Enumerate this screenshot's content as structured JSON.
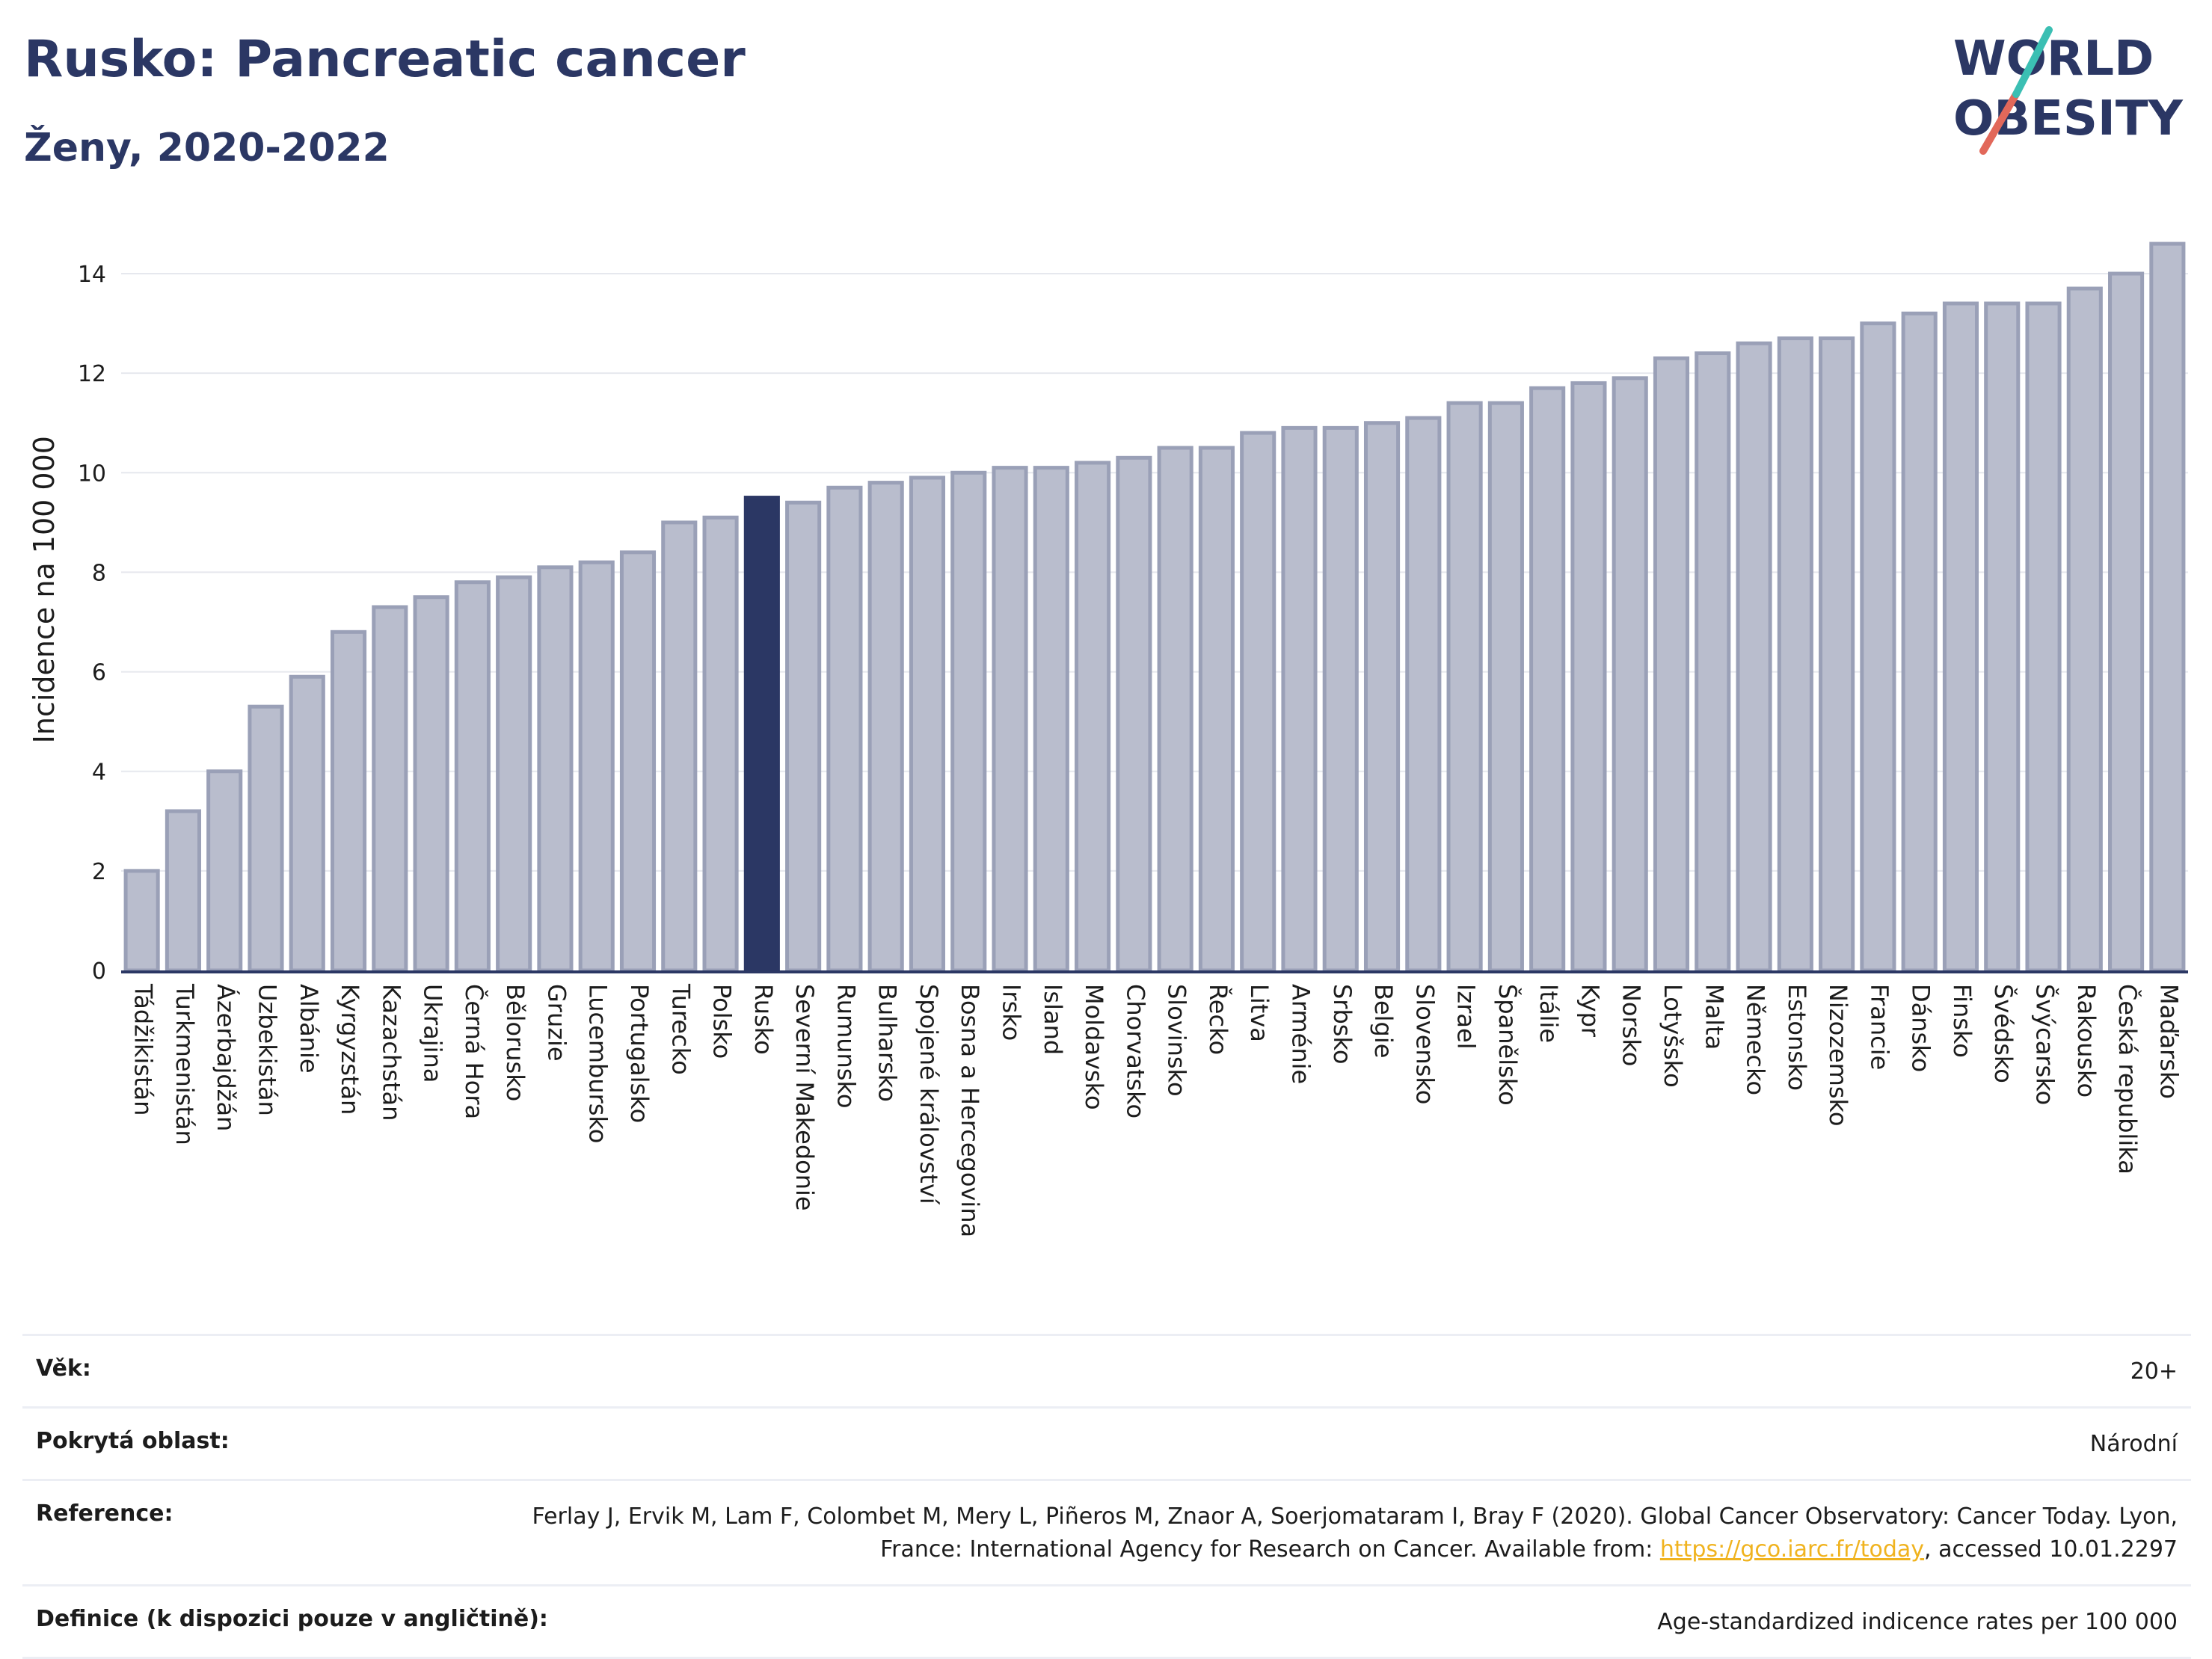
{
  "header": {
    "title": "Rusko: Pancreatic cancer",
    "subtitle": "Ženy, 2020-2022"
  },
  "logo": {
    "line1": "WORLD",
    "line2": "OBESITY"
  },
  "colors": {
    "bar": "#b9bdcd",
    "bar_stroke": "#9aa0b7",
    "highlight": "#2b3764",
    "grid": "#e6e8ee",
    "text": "#2b3764"
  },
  "chart_data": {
    "type": "bar",
    "ylabel": "Incidence na 100 000",
    "ylim": [
      0,
      15
    ],
    "yticks": [
      0,
      2,
      4,
      6,
      8,
      10,
      12,
      14
    ],
    "grid": true,
    "highlight": "Rusko",
    "categories": [
      "Tádžikistán",
      "Turkmenistán",
      "Ázerbajdžán",
      "Uzbekistán",
      "Albánie",
      "Kyrgyzstán",
      "Kazachstán",
      "Ukrajina",
      "Černá Hora",
      "Bělorusko",
      "Gruzie",
      "Lucembursko",
      "Portugalsko",
      "Turecko",
      "Polsko",
      "Rusko",
      "Severní Makedonie",
      "Rumunsko",
      "Bulharsko",
      "Spojené království",
      "Bosna a Hercegovina",
      "Irsko",
      "Island",
      "Moldavsko",
      "Chorvatsko",
      "Slovinsko",
      "Řecko",
      "Litva",
      "Arménie",
      "Srbsko",
      "Belgie",
      "Slovensko",
      "Izrael",
      "Španělsko",
      "Itálie",
      "Kypr",
      "Norsko",
      "Lotyšsko",
      "Malta",
      "Německo",
      "Estonsko",
      "Nizozemsko",
      "Francie",
      "Dánsko",
      "Finsko",
      "Švédsko",
      "Švýcarsko",
      "Rakousko",
      "Česká republika",
      "Maďarsko"
    ],
    "values": [
      2.0,
      3.2,
      4.0,
      5.3,
      5.9,
      6.8,
      7.3,
      7.5,
      7.8,
      7.9,
      8.1,
      8.2,
      8.4,
      9.0,
      9.1,
      9.5,
      9.4,
      9.7,
      9.8,
      9.9,
      10.0,
      10.1,
      10.1,
      10.2,
      10.3,
      10.5,
      10.5,
      10.8,
      10.9,
      10.9,
      11.0,
      11.1,
      11.4,
      11.4,
      11.7,
      11.8,
      11.9,
      12.3,
      12.4,
      12.6,
      12.7,
      12.7,
      13.0,
      13.2,
      13.4,
      13.4,
      13.4,
      13.7,
      14.0,
      14.6
    ]
  },
  "meta": {
    "age_label": "Věk:",
    "age_value": "20+",
    "area_label": "Pokrytá oblast:",
    "area_value": "Národní",
    "ref_label": "Reference:",
    "ref_text_1": "Ferlay J, Ervik M, Lam F, Colombet M, Mery L, Piñeros M, Znaor A, Soerjomataram I, Bray F (2020). Global Cancer Observatory: Cancer Today. Lyon, France: International Agency for Research on Cancer. Available from: ",
    "ref_link": "https://gco.iarc.fr/today",
    "ref_text_2": ", accessed 10.01.2297",
    "def_label": "Definice (k dispozici pouze v angličtině):",
    "def_value": "Age-standardized indicence rates per 100 000"
  }
}
